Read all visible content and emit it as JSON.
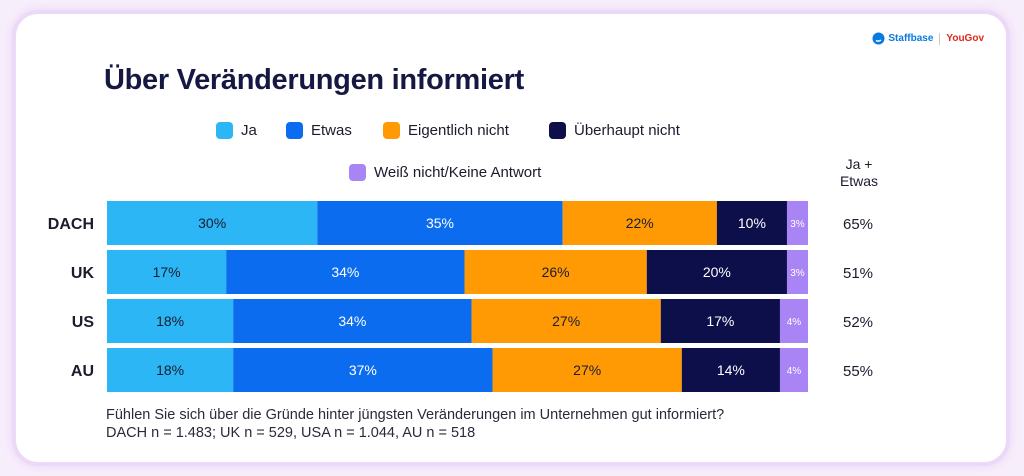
{
  "brand": {
    "staffbase": "Staffbase",
    "yougov": "YouGov"
  },
  "chart_data": {
    "type": "bar",
    "orientation": "horizontal-stacked-100",
    "title": "Über Veränderungen informiert",
    "categories": [
      "DACH",
      "UK",
      "US",
      "AU"
    ],
    "series": [
      {
        "name": "Ja",
        "color": "#2cb6f5",
        "values": [
          30,
          17,
          18,
          18
        ]
      },
      {
        "name": "Etwas",
        "color": "#0b6cf0",
        "values": [
          35,
          34,
          34,
          37
        ]
      },
      {
        "name": "Eigentlich nicht",
        "color": "#ff9a05",
        "values": [
          22,
          26,
          27,
          27
        ]
      },
      {
        "name": "Überhaupt nicht",
        "color": "#0d0f4a",
        "values": [
          10,
          20,
          17,
          14
        ]
      },
      {
        "name": "Weiß nicht/Keine Antwort",
        "color": "#a884f5",
        "values": [
          3,
          3,
          4,
          4
        ]
      }
    ],
    "label_colors": [
      "#1b1b2e",
      "#ffffff",
      "#1b1b2e",
      "#ffffff",
      "#ffffff"
    ],
    "summary_header": "Ja + Etwas",
    "summary_values": [
      "65%",
      "51%",
      "52%",
      "55%"
    ],
    "xlim": [
      0,
      100
    ],
    "legend": "top"
  },
  "footnote": {
    "question": "Fühlen Sie sich über die Gründe hinter jüngsten Veränderungen im Unternehmen gut informiert?",
    "sample": "DACH n = 1.483; UK n = 529, USA n = 1.044, AU n = 518"
  }
}
